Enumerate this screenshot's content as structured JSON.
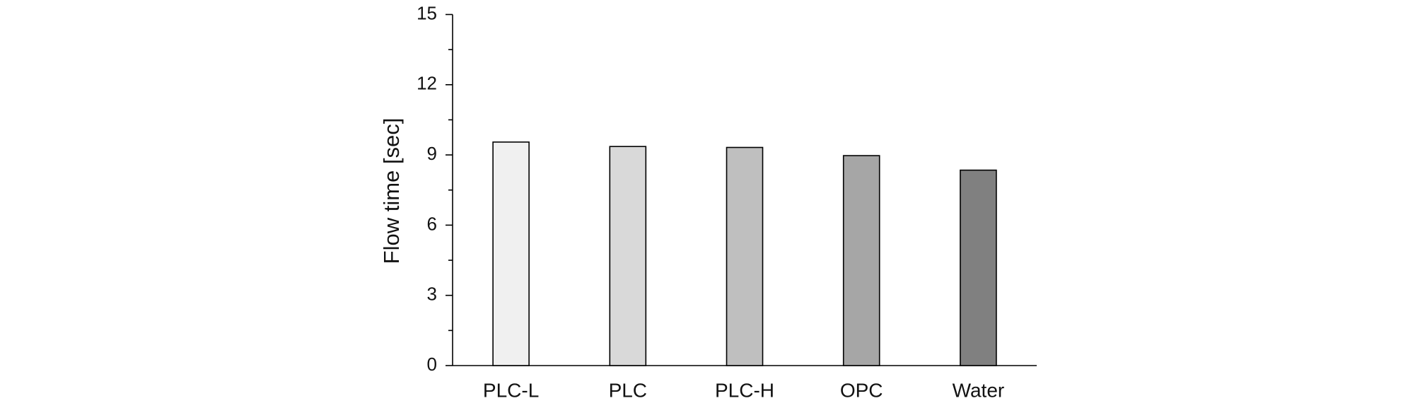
{
  "chart_data": {
    "type": "bar",
    "y_label": "Flow time [sec]",
    "categories": [
      "PLC-L",
      "PLC",
      "PLC-H",
      "OPC",
      "Water"
    ],
    "values": [
      9.55,
      9.36,
      9.32,
      8.97,
      8.35
    ],
    "colors": [
      "#f0f0f0",
      "#d9d9d9",
      "#bfbfbf",
      "#a6a6a6",
      "#808080"
    ],
    "ylim": [
      0,
      15
    ],
    "yticks": [
      0,
      3,
      6,
      9,
      12,
      15
    ],
    "grid": false
  }
}
